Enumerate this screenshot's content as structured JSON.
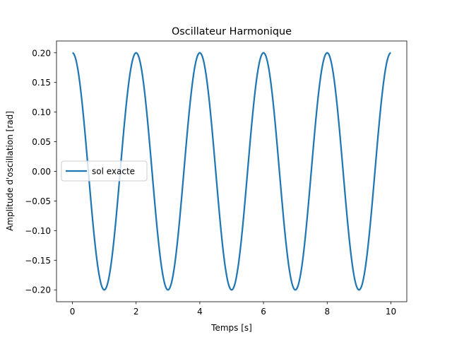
{
  "chart_data": {
    "type": "line",
    "title": "Oscillateur Harmonique",
    "xlabel": "Temps [s]",
    "ylabel": "Amplitude d'oscillation [rad]",
    "xlim": [
      -0.5,
      10.5
    ],
    "ylim": [
      -0.22,
      0.22
    ],
    "xticks": [
      0,
      2,
      4,
      6,
      8,
      10
    ],
    "xtick_labels": [
      "0",
      "2",
      "4",
      "6",
      "8",
      "10"
    ],
    "yticks": [
      -0.2,
      -0.15,
      -0.1,
      -0.05,
      0.0,
      0.05,
      0.1,
      0.15,
      0.2
    ],
    "ytick_labels": [
      "−0.20",
      "−0.15",
      "−0.10",
      "−0.05",
      "0.00",
      "0.05",
      "0.10",
      "0.15",
      "0.20"
    ],
    "grid": false,
    "legend": {
      "position": "center-left",
      "entries": [
        "sol exacte"
      ]
    },
    "series": [
      {
        "name": "sol exacte",
        "color": "#1f77b4",
        "function": "0.2*cos(pi*t)",
        "x_range": [
          0,
          10
        ],
        "amplitude": 0.2,
        "period": 2.0
      }
    ]
  }
}
